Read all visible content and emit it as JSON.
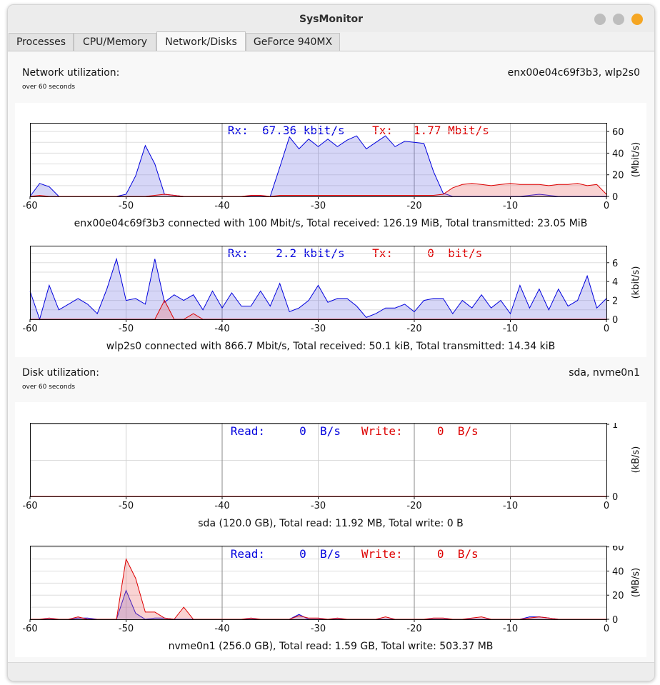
{
  "window": {
    "title": "SysMonitor",
    "buttons": [
      {
        "name": "minimize",
        "color": "#bdbdbd"
      },
      {
        "name": "maximize",
        "color": "#bdbdbd"
      },
      {
        "name": "close",
        "color": "#f5a623"
      }
    ]
  },
  "tabs": [
    {
      "label": "Processes",
      "active": false
    },
    {
      "label": "CPU/Memory",
      "active": false
    },
    {
      "label": "Network/Disks",
      "active": true
    },
    {
      "label": "GeForce 940MX",
      "active": false
    }
  ],
  "network": {
    "title": "Network utilization:",
    "subtitle": "over 60 seconds",
    "devices": "enx00e04c69f3b3, wlp2s0"
  },
  "disk": {
    "title": "Disk utilization:",
    "subtitle": "over 60 seconds",
    "devices": "sda, nvme0n1"
  },
  "colors": {
    "rx": "#0000dd",
    "tx": "#dd0000",
    "rx_fill": "rgba(120,120,230,0.30)",
    "tx_fill": "rgba(235,110,110,0.30)"
  },
  "chart_data": [
    {
      "id": "enx",
      "type": "area",
      "legend": [
        {
          "label": "Rx:",
          "value": "67.36",
          "unit": "kbit/s",
          "color": "#0000dd"
        },
        {
          "label": "Tx:",
          "value": "1.77",
          "unit": "Mbit/s",
          "color": "#dd0000"
        }
      ],
      "ylabel": "(Mbit/s)",
      "xlim": [
        -60,
        0
      ],
      "ylim": [
        0,
        68
      ],
      "yticks": [
        0,
        20,
        40,
        60
      ],
      "xticks": [
        -60,
        -50,
        -40,
        -30,
        -20,
        -10,
        0
      ],
      "caption": "enx00e04c69f3b3 connected with 100 Mbit/s, Total received: 126.19 MiB, Total transmitted: 23.05 MiB",
      "series": [
        {
          "name": "Rx",
          "color": "#0000dd",
          "x": [
            -60,
            -59,
            -58,
            -57,
            -56,
            -55,
            -54,
            -53,
            -52,
            -51,
            -50,
            -49,
            -48,
            -47,
            -46,
            -45,
            -44,
            -43,
            -42,
            -41,
            -40,
            -39,
            -38,
            -37,
            -36,
            -35,
            -34,
            -33,
            -32,
            -31,
            -30,
            -29,
            -28,
            -27,
            -26,
            -25,
            -24,
            -23,
            -22,
            -21,
            -20,
            -19,
            -18,
            -17,
            -16,
            -15,
            -14,
            -13,
            -12,
            -11,
            -10,
            -9,
            -8,
            -7,
            -6,
            -5,
            -4,
            -3,
            -2,
            -1,
            0
          ],
          "y": [
            0,
            12,
            9,
            0,
            0,
            0,
            0,
            0,
            0,
            0,
            2,
            19,
            47,
            30,
            2,
            1,
            0,
            0,
            0,
            0,
            0,
            0,
            0,
            0,
            0,
            0,
            27,
            55,
            44,
            53,
            46,
            53,
            46,
            52,
            56,
            44,
            50,
            56,
            46,
            51,
            50,
            49,
            23,
            3,
            0,
            0,
            0,
            0,
            0,
            0,
            0,
            0,
            1,
            2,
            1,
            0,
            0,
            0,
            0,
            0,
            0
          ]
        },
        {
          "name": "Tx",
          "color": "#dd0000",
          "x": [
            -60,
            -59,
            -58,
            -57,
            -56,
            -55,
            -54,
            -53,
            -52,
            -51,
            -50,
            -49,
            -48,
            -47,
            -46,
            -45,
            -44,
            -43,
            -42,
            -41,
            -40,
            -39,
            -38,
            -37,
            -36,
            -35,
            -34,
            -33,
            -32,
            -31,
            -30,
            -29,
            -28,
            -27,
            -26,
            -25,
            -24,
            -23,
            -22,
            -21,
            -20,
            -19,
            -18,
            -17,
            -16,
            -15,
            -14,
            -13,
            -12,
            -11,
            -10,
            -9,
            -8,
            -7,
            -6,
            -5,
            -4,
            -3,
            -2,
            -1,
            0
          ],
          "y": [
            0,
            1,
            0,
            0,
            0,
            0,
            0,
            0,
            0,
            0,
            0,
            0,
            0,
            1,
            2,
            1,
            0,
            0,
            0,
            0,
            0,
            0,
            0,
            1,
            1,
            0,
            1,
            1,
            1,
            1,
            1,
            1,
            1,
            1,
            1,
            1,
            1,
            1,
            1,
            1,
            1,
            1,
            1,
            2,
            8,
            11,
            12,
            11,
            10,
            11,
            12,
            11,
            11,
            11,
            10,
            11,
            11,
            12,
            10,
            11,
            2
          ]
        }
      ]
    },
    {
      "id": "wlp",
      "type": "area",
      "legend": [
        {
          "label": "Rx:",
          "value": "2.2",
          "unit": "kbit/s",
          "color": "#0000dd"
        },
        {
          "label": "Tx:",
          "value": "0",
          "unit": "bit/s",
          "color": "#dd0000"
        }
      ],
      "ylabel": "(kbit/s)",
      "xlim": [
        -60,
        0
      ],
      "ylim": [
        0,
        7.8
      ],
      "yticks": [
        0,
        2,
        4,
        6
      ],
      "xticks": [
        -60,
        -50,
        -40,
        -30,
        -20,
        -10,
        0
      ],
      "caption": "wlp2s0 connected with 866.7 Mbit/s, Total received: 50.1 kiB, Total transmitted: 14.34 kiB",
      "series": [
        {
          "name": "Rx",
          "color": "#0000dd",
          "x": [
            -60,
            -59,
            -58,
            -57,
            -56,
            -55,
            -54,
            -53,
            -52,
            -51,
            -50,
            -49,
            -48,
            -47,
            -46,
            -45,
            -44,
            -43,
            -42,
            -41,
            -40,
            -39,
            -38,
            -37,
            -36,
            -35,
            -34,
            -33,
            -32,
            -31,
            -30,
            -29,
            -28,
            -27,
            -26,
            -25,
            -24,
            -23,
            -22,
            -21,
            -20,
            -19,
            -18,
            -17,
            -16,
            -15,
            -14,
            -13,
            -12,
            -11,
            -10,
            -9,
            -8,
            -7,
            -6,
            -5,
            -4,
            -3,
            -2,
            -1,
            0
          ],
          "y": [
            3,
            0,
            3.6,
            1,
            1.6,
            2.2,
            1.6,
            0.6,
            3.2,
            6.4,
            2,
            2.2,
            1.6,
            6.4,
            1.8,
            2.6,
            2,
            2.6,
            1,
            3,
            1.2,
            2.8,
            1.4,
            1.4,
            3,
            1.4,
            3.8,
            0.8,
            1.2,
            2,
            3.6,
            1.8,
            2.2,
            2.2,
            1.4,
            0.2,
            0.6,
            1.2,
            1.2,
            1.6,
            0.8,
            2,
            2.2,
            2.2,
            0.6,
            2,
            1.2,
            2.6,
            1.2,
            2,
            0.6,
            3.6,
            1.2,
            3.2,
            1,
            3.2,
            1.4,
            2,
            4.6,
            1.2,
            2.2
          ]
        },
        {
          "name": "Tx",
          "color": "#dd0000",
          "x": [
            -60,
            -49,
            -48,
            -47,
            -46,
            -45,
            -44,
            -43,
            -42,
            -41,
            0
          ],
          "y": [
            0,
            0,
            0,
            0,
            2,
            0,
            0,
            0.6,
            0,
            0,
            0
          ]
        }
      ]
    },
    {
      "id": "sda",
      "type": "area",
      "legend": [
        {
          "label": "Read:",
          "value": "0",
          "unit": "B/s",
          "color": "#0000dd"
        },
        {
          "label": "Write:",
          "value": "0",
          "unit": "B/s",
          "color": "#dd0000"
        }
      ],
      "ylabel": "(kB/s)",
      "xlim": [
        -60,
        0
      ],
      "ylim": [
        0,
        1.02
      ],
      "yticks": [
        0,
        1
      ],
      "xticks": [
        -60,
        -50,
        -40,
        -30,
        -20,
        -10,
        0
      ],
      "caption": "sda (120.0 GB), Total read: 11.92 MB, Total write: 0 B",
      "series": [
        {
          "name": "Read",
          "color": "#0000dd",
          "x": [
            -60,
            0
          ],
          "y": [
            0,
            0
          ]
        },
        {
          "name": "Write",
          "color": "#dd0000",
          "x": [
            -60,
            0
          ],
          "y": [
            0,
            0
          ]
        }
      ]
    },
    {
      "id": "nvme",
      "type": "area",
      "legend": [
        {
          "label": "Read:",
          "value": "0",
          "unit": "B/s",
          "color": "#0000dd"
        },
        {
          "label": "Write:",
          "value": "0",
          "unit": "B/s",
          "color": "#dd0000"
        }
      ],
      "ylabel": "(MB/s)",
      "xlim": [
        -60,
        0
      ],
      "ylim": [
        0,
        61
      ],
      "yticks": [
        0,
        20,
        40,
        60
      ],
      "xticks": [
        -60,
        -50,
        -40,
        -30,
        -20,
        -10,
        0
      ],
      "caption": "nvme0n1 (256.0 GB), Total read: 1.59 GB, Total write: 503.37 MB",
      "series": [
        {
          "name": "Read",
          "color": "#0000dd",
          "x": [
            -60,
            -59,
            -58,
            -57,
            -56,
            -55,
            -54,
            -53,
            -52,
            -51,
            -50,
            -49,
            -48,
            -47,
            -46,
            -45,
            -44,
            -43,
            -42,
            -41,
            -40,
            -39,
            -38,
            -37,
            -36,
            -35,
            -34,
            -33,
            -32,
            -31,
            -30,
            -29,
            -28,
            -27,
            -26,
            -25,
            -24,
            -23,
            -22,
            -21,
            -20,
            -19,
            -18,
            -17,
            -16,
            -15,
            -14,
            -13,
            -12,
            -11,
            -10,
            -9,
            -8,
            -7,
            -6,
            -5,
            -4,
            -3,
            -2,
            -1,
            0
          ],
          "y": [
            0,
            0,
            0,
            0,
            0,
            1,
            1,
            0,
            0,
            0,
            24,
            5,
            0,
            1,
            1,
            0,
            0,
            0,
            0,
            0,
            0,
            0,
            0,
            0,
            0,
            0,
            0,
            0,
            4,
            0,
            0,
            0,
            0,
            0,
            0,
            0,
            0,
            0,
            0,
            0,
            0,
            0,
            0,
            0,
            0,
            0,
            0,
            0,
            0,
            0,
            0,
            0,
            2,
            2,
            1,
            0,
            0,
            0,
            0,
            0,
            0
          ]
        },
        {
          "name": "Write",
          "color": "#dd0000",
          "x": [
            -60,
            -59,
            -58,
            -57,
            -56,
            -55,
            -54,
            -53,
            -52,
            -51,
            -50,
            -49,
            -48,
            -47,
            -46,
            -45,
            -44,
            -43,
            -42,
            -41,
            -40,
            -39,
            -38,
            -37,
            -36,
            -35,
            -34,
            -33,
            -32,
            -31,
            -30,
            -29,
            -28,
            -27,
            -26,
            -25,
            -24,
            -23,
            -22,
            -21,
            -20,
            -19,
            -18,
            -17,
            -16,
            -15,
            -14,
            -13,
            -12,
            -11,
            -10,
            -9,
            -8,
            -7,
            -6,
            -5,
            -4,
            -3,
            -2,
            -1,
            0
          ],
          "y": [
            0,
            0,
            1,
            0,
            0,
            2,
            0,
            0,
            0,
            0,
            50,
            34,
            6,
            6,
            1,
            0,
            10,
            0,
            0,
            0,
            0,
            0,
            0,
            1,
            0,
            0,
            0,
            0,
            3,
            1,
            1,
            0,
            1,
            0,
            0,
            0,
            0,
            2,
            0,
            0,
            0,
            0,
            1,
            1,
            0,
            0,
            1,
            2,
            0,
            0,
            0,
            0,
            1,
            2,
            1,
            0,
            0,
            0,
            0,
            0,
            0
          ]
        }
      ]
    }
  ]
}
